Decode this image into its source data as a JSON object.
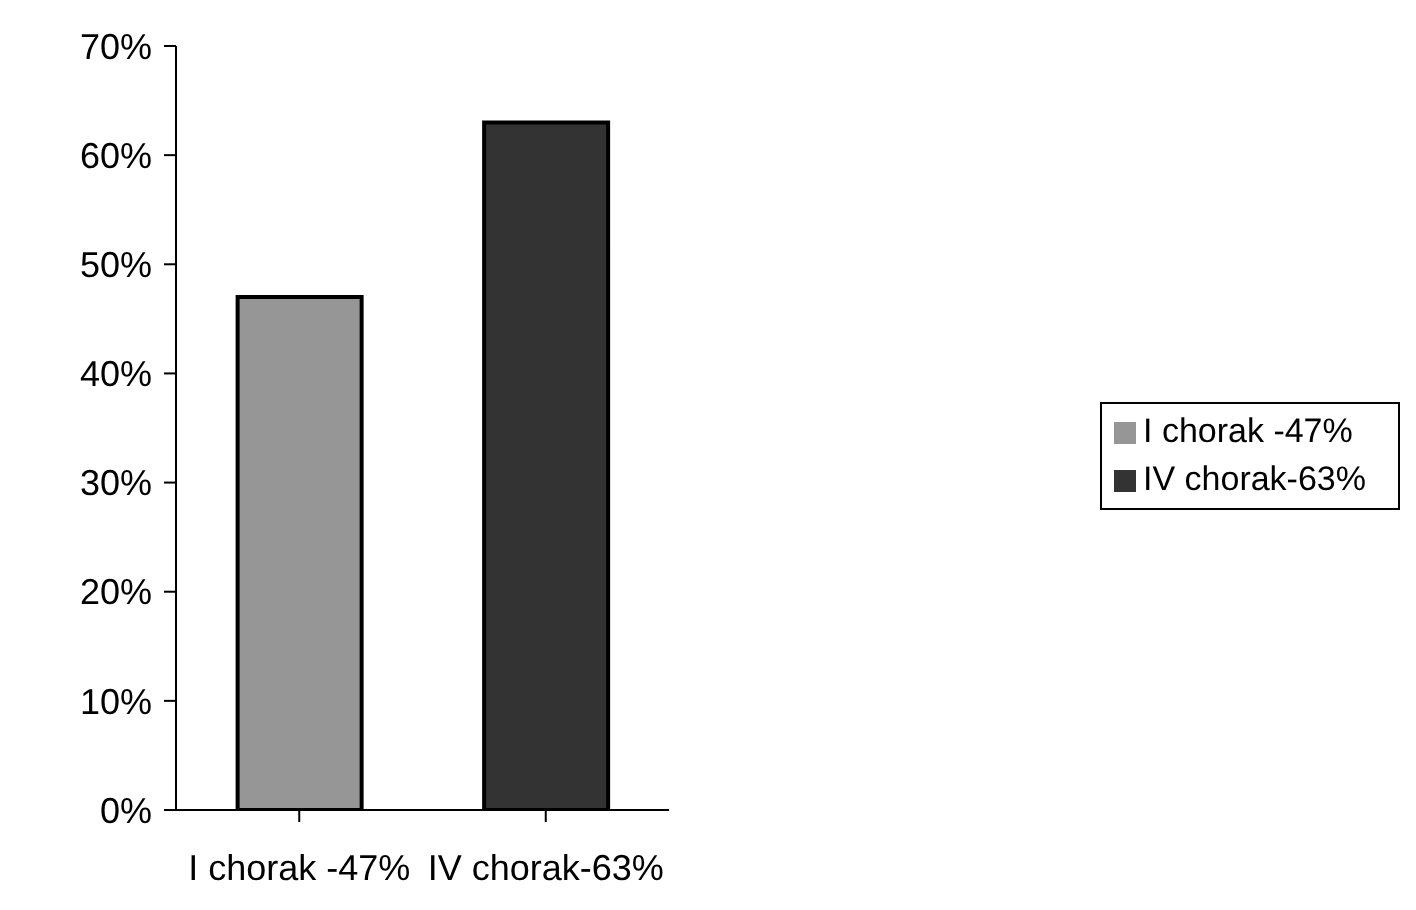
{
  "chart_data": {
    "type": "bar",
    "categories": [
      "I chorak -47%",
      "IV chorak-63%"
    ],
    "series": [
      {
        "name": "I chorak -47%",
        "color": "#969696",
        "values": [
          47,
          null
        ]
      },
      {
        "name": "IV chorak-63%",
        "color": "#333333",
        "values": [
          null,
          63
        ]
      }
    ],
    "ylim": [
      0,
      70
    ],
    "yticks": [
      {
        "value": 0,
        "label": "0%"
      },
      {
        "value": 10,
        "label": "10%"
      },
      {
        "value": 20,
        "label": "20%"
      },
      {
        "value": 30,
        "label": "30%"
      },
      {
        "value": 40,
        "label": "40%"
      },
      {
        "value": 50,
        "label": "50%"
      },
      {
        "value": 60,
        "label": "60%"
      },
      {
        "value": 70,
        "label": "70%"
      }
    ],
    "legend": "right"
  }
}
